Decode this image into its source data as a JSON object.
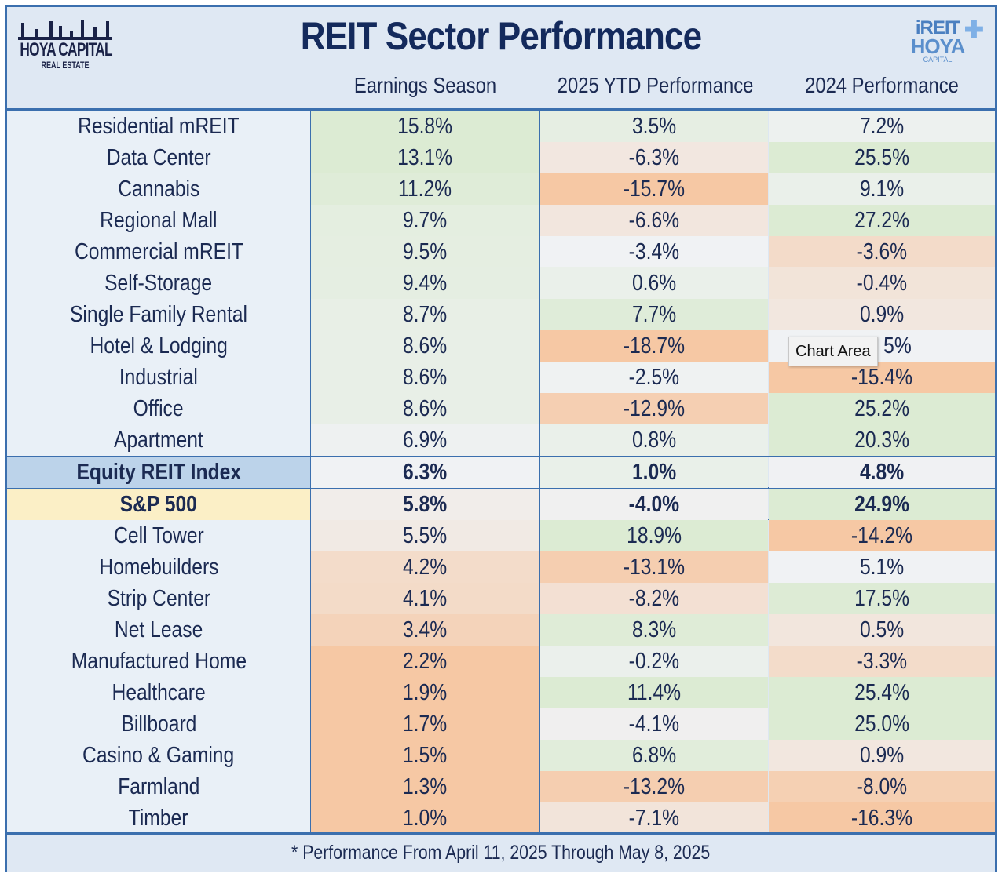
{
  "title": "REIT Sector Performance",
  "logo_left": {
    "name": "HOYA CAPITAL",
    "sub": "REAL ESTATE"
  },
  "logo_right": {
    "line1": "iREIT",
    "line2": "HOYA",
    "line3": "CAPITAL"
  },
  "chart_data": {
    "type": "table",
    "title": "REIT Sector Performance",
    "columns": [
      "",
      "Earnings Season",
      "2025 YTD Performance",
      "2024 Performance"
    ],
    "rows": [
      {
        "label": "Residential mREIT",
        "values": [
          "15.8%",
          "3.5%",
          "7.2%"
        ]
      },
      {
        "label": "Data Center",
        "values": [
          "13.1%",
          "-6.3%",
          "25.5%"
        ]
      },
      {
        "label": "Cannabis",
        "values": [
          "11.2%",
          "-15.7%",
          "9.1%"
        ]
      },
      {
        "label": "Regional Mall",
        "values": [
          "9.7%",
          "-6.6%",
          "27.2%"
        ]
      },
      {
        "label": "Commercial mREIT",
        "values": [
          "9.5%",
          "-3.4%",
          "-3.6%"
        ]
      },
      {
        "label": "Self-Storage",
        "values": [
          "9.4%",
          "0.6%",
          "-0.4%"
        ]
      },
      {
        "label": "Single Family Rental",
        "values": [
          "8.7%",
          "7.7%",
          "0.9%"
        ]
      },
      {
        "label": "Hotel & Lodging",
        "values": [
          "8.6%",
          "-18.7%",
          "5%"
        ]
      },
      {
        "label": "Industrial",
        "values": [
          "8.6%",
          "-2.5%",
          "-15.4%"
        ]
      },
      {
        "label": "Office",
        "values": [
          "8.6%",
          "-12.9%",
          "25.2%"
        ]
      },
      {
        "label": "Apartment",
        "values": [
          "6.9%",
          "0.8%",
          "20.3%"
        ]
      },
      {
        "label": "Equity REIT Index",
        "values": [
          "6.3%",
          "1.0%",
          "4.8%"
        ],
        "highlight": "#bcd3ea"
      },
      {
        "label": "S&P 500",
        "values": [
          "5.8%",
          "-4.0%",
          "24.9%"
        ],
        "highlight": "#fbefc6"
      },
      {
        "label": "Cell Tower",
        "values": [
          "5.5%",
          "18.9%",
          "-14.2%"
        ]
      },
      {
        "label": "Homebuilders",
        "values": [
          "4.2%",
          "-13.1%",
          "5.1%"
        ]
      },
      {
        "label": "Strip Center",
        "values": [
          "4.1%",
          "-8.2%",
          "17.5%"
        ]
      },
      {
        "label": "Net Lease",
        "values": [
          "3.4%",
          "8.3%",
          "0.5%"
        ]
      },
      {
        "label": "Manufactured Home",
        "values": [
          "2.2%",
          "-0.2%",
          "-3.3%"
        ]
      },
      {
        "label": "Healthcare",
        "values": [
          "1.9%",
          "11.4%",
          "25.4%"
        ]
      },
      {
        "label": "Billboard",
        "values": [
          "1.7%",
          "-4.1%",
          "25.0%"
        ]
      },
      {
        "label": "Casino & Gaming",
        "values": [
          "1.5%",
          "6.8%",
          "0.9%"
        ]
      },
      {
        "label": "Farmland",
        "values": [
          "1.3%",
          "-13.2%",
          "-8.0%"
        ]
      },
      {
        "label": "Timber",
        "values": [
          "1.0%",
          "-7.1%",
          "-16.3%"
        ]
      }
    ],
    "color_scale": {
      "low": "#f6c8a4",
      "mid": "#f0f2f4",
      "high": "#dcebd3"
    }
  },
  "footer": "* Performance From April 11, 2025 Through May 8, 2025",
  "tooltip": "Chart Area"
}
